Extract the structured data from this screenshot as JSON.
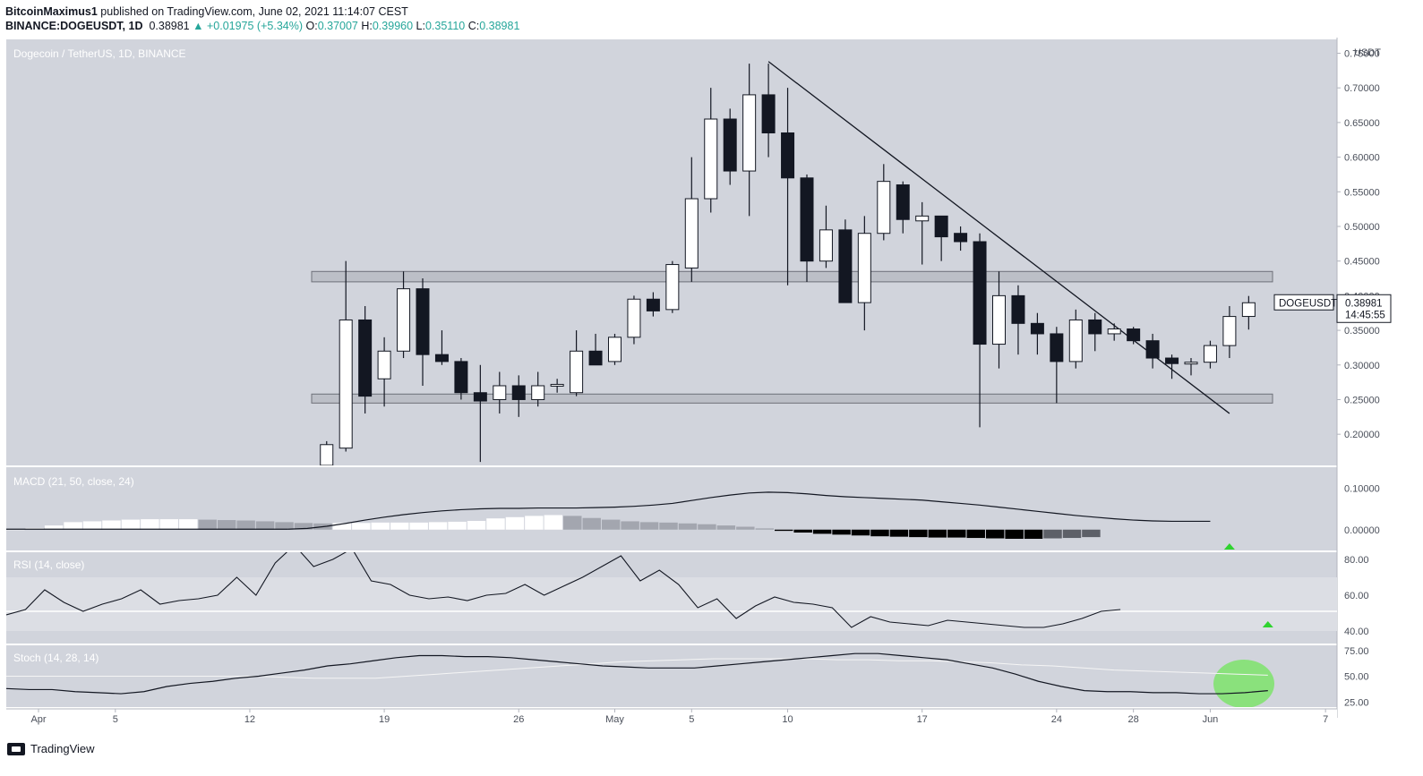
{
  "header": {
    "author": "BitcoinMaximus1",
    "published_text": "published on TradingView.com, June 02, 2021 11:14:07 CEST",
    "symbol": "BINANCE:DOGEUSDT, 1D",
    "last": "0.38981",
    "change": "▲ +0.01975 (+5.34%)",
    "o_label": "O:",
    "o": "0.37007",
    "h_label": "H:",
    "h": "0.39960",
    "l_label": "L:",
    "l": "0.35110",
    "c_label": "C:",
    "c": "0.38981"
  },
  "footer": {
    "brand": "TradingView"
  },
  "colors": {
    "panel_bg": "#d1d4dc",
    "bull": "#ffffff",
    "bear": "#131722",
    "highlight_green": "#7ee36b",
    "arrow_green": "#2fd32f"
  },
  "chart_data": [
    {
      "type": "candlestick",
      "title": "Dogecoin / TetherUS, 1D, BINANCE",
      "ylabel": "USDT",
      "ylim": [
        0.155,
        0.77
      ],
      "y_ticks": [
        "0.75000",
        "0.70000",
        "0.65000",
        "0.60000",
        "0.55000",
        "0.50000",
        "0.45000",
        "0.40000",
        "0.35000",
        "0.30000",
        "0.25000",
        "0.20000"
      ],
      "x_ticks": [
        {
          "label": "Apr",
          "day": 1
        },
        {
          "label": "5",
          "day": 5
        },
        {
          "label": "12",
          "day": 12
        },
        {
          "label": "19",
          "day": 19
        },
        {
          "label": "26",
          "day": 26
        },
        {
          "label": "May",
          "day": 31
        },
        {
          "label": "5",
          "day": 35
        },
        {
          "label": "10",
          "day": 40
        },
        {
          "label": "17",
          "day": 47
        },
        {
          "label": "24",
          "day": 54
        },
        {
          "label": "28",
          "day": 58
        },
        {
          "label": "Jun",
          "day": 62
        },
        {
          "label": "7",
          "day": 68
        }
      ],
      "candles": [
        {
          "d": 16,
          "o": 0.155,
          "h": 0.19,
          "l": 0.155,
          "c": 0.185
        },
        {
          "d": 17,
          "o": 0.18,
          "h": 0.45,
          "l": 0.175,
          "c": 0.365
        },
        {
          "d": 18,
          "o": 0.365,
          "h": 0.385,
          "l": 0.23,
          "c": 0.255
        },
        {
          "d": 19,
          "o": 0.28,
          "h": 0.34,
          "l": 0.24,
          "c": 0.32
        },
        {
          "d": 20,
          "o": 0.32,
          "h": 0.435,
          "l": 0.31,
          "c": 0.41
        },
        {
          "d": 21,
          "o": 0.41,
          "h": 0.425,
          "l": 0.27,
          "c": 0.315
        },
        {
          "d": 22,
          "o": 0.315,
          "h": 0.35,
          "l": 0.3,
          "c": 0.305
        },
        {
          "d": 23,
          "o": 0.305,
          "h": 0.31,
          "l": 0.25,
          "c": 0.26
        },
        {
          "d": 24,
          "o": 0.26,
          "h": 0.3,
          "l": 0.16,
          "c": 0.248
        },
        {
          "d": 25,
          "o": 0.25,
          "h": 0.29,
          "l": 0.23,
          "c": 0.27
        },
        {
          "d": 26,
          "o": 0.27,
          "h": 0.285,
          "l": 0.225,
          "c": 0.25
        },
        {
          "d": 27,
          "o": 0.25,
          "h": 0.29,
          "l": 0.24,
          "c": 0.27
        },
        {
          "d": 28,
          "o": 0.27,
          "h": 0.28,
          "l": 0.26,
          "c": 0.272
        },
        {
          "d": 29,
          "o": 0.26,
          "h": 0.35,
          "l": 0.255,
          "c": 0.32
        },
        {
          "d": 30,
          "o": 0.32,
          "h": 0.345,
          "l": 0.3,
          "c": 0.3
        },
        {
          "d": 31,
          "o": 0.305,
          "h": 0.345,
          "l": 0.3,
          "c": 0.34
        },
        {
          "d": 32,
          "o": 0.34,
          "h": 0.4,
          "l": 0.33,
          "c": 0.395
        },
        {
          "d": 33,
          "o": 0.395,
          "h": 0.405,
          "l": 0.37,
          "c": 0.378
        },
        {
          "d": 34,
          "o": 0.38,
          "h": 0.45,
          "l": 0.375,
          "c": 0.445
        },
        {
          "d": 35,
          "o": 0.44,
          "h": 0.6,
          "l": 0.42,
          "c": 0.54
        },
        {
          "d": 36,
          "o": 0.54,
          "h": 0.7,
          "l": 0.52,
          "c": 0.655
        },
        {
          "d": 37,
          "o": 0.655,
          "h": 0.67,
          "l": 0.56,
          "c": 0.58
        },
        {
          "d": 38,
          "o": 0.58,
          "h": 0.735,
          "l": 0.515,
          "c": 0.69
        },
        {
          "d": 39,
          "o": 0.69,
          "h": 0.735,
          "l": 0.6,
          "c": 0.635
        },
        {
          "d": 40,
          "o": 0.635,
          "h": 0.7,
          "l": 0.415,
          "c": 0.57
        },
        {
          "d": 41,
          "o": 0.57,
          "h": 0.575,
          "l": 0.42,
          "c": 0.45
        },
        {
          "d": 42,
          "o": 0.45,
          "h": 0.53,
          "l": 0.44,
          "c": 0.495
        },
        {
          "d": 43,
          "o": 0.495,
          "h": 0.51,
          "l": 0.39,
          "c": 0.39
        },
        {
          "d": 44,
          "o": 0.39,
          "h": 0.515,
          "l": 0.35,
          "c": 0.49
        },
        {
          "d": 45,
          "o": 0.49,
          "h": 0.59,
          "l": 0.48,
          "c": 0.565
        },
        {
          "d": 46,
          "o": 0.56,
          "h": 0.565,
          "l": 0.49,
          "c": 0.51
        },
        {
          "d": 47,
          "o": 0.508,
          "h": 0.535,
          "l": 0.445,
          "c": 0.515
        },
        {
          "d": 48,
          "o": 0.515,
          "h": 0.51,
          "l": 0.45,
          "c": 0.485
        },
        {
          "d": 49,
          "o": 0.49,
          "h": 0.5,
          "l": 0.465,
          "c": 0.478
        },
        {
          "d": 50,
          "o": 0.478,
          "h": 0.49,
          "l": 0.21,
          "c": 0.33
        },
        {
          "d": 51,
          "o": 0.33,
          "h": 0.435,
          "l": 0.295,
          "c": 0.4
        },
        {
          "d": 52,
          "o": 0.4,
          "h": 0.415,
          "l": 0.315,
          "c": 0.36
        },
        {
          "d": 53,
          "o": 0.36,
          "h": 0.375,
          "l": 0.315,
          "c": 0.345
        },
        {
          "d": 54,
          "o": 0.345,
          "h": 0.355,
          "l": 0.245,
          "c": 0.305
        },
        {
          "d": 55,
          "o": 0.305,
          "h": 0.38,
          "l": 0.295,
          "c": 0.365
        },
        {
          "d": 56,
          "o": 0.365,
          "h": 0.375,
          "l": 0.32,
          "c": 0.345
        },
        {
          "d": 57,
          "o": 0.345,
          "h": 0.36,
          "l": 0.335,
          "c": 0.352
        },
        {
          "d": 58,
          "o": 0.352,
          "h": 0.355,
          "l": 0.33,
          "c": 0.335
        },
        {
          "d": 59,
          "o": 0.335,
          "h": 0.345,
          "l": 0.295,
          "c": 0.31
        },
        {
          "d": 60,
          "o": 0.31,
          "h": 0.315,
          "l": 0.28,
          "c": 0.302
        },
        {
          "d": 61,
          "o": 0.302,
          "h": 0.31,
          "l": 0.285,
          "c": 0.304
        },
        {
          "d": 62,
          "o": 0.304,
          "h": 0.335,
          "l": 0.295,
          "c": 0.328
        },
        {
          "d": 63,
          "o": 0.328,
          "h": 0.385,
          "l": 0.31,
          "c": 0.37
        },
        {
          "d": 64,
          "o": 0.37007,
          "h": 0.3996,
          "l": 0.3511,
          "c": 0.38981
        }
      ],
      "zones": [
        {
          "low": 0.42,
          "high": 0.435
        },
        {
          "low": 0.245,
          "high": 0.258
        }
      ],
      "trendline": {
        "from": {
          "d": 39,
          "v": 0.738
        },
        "to": {
          "d": 63,
          "v": 0.23
        }
      },
      "price_label": {
        "symbol": "DOGEUSDT",
        "value": "0.38981",
        "countdown": "14:45:55"
      }
    },
    {
      "type": "macd",
      "title": "MACD (21, 50, close, 24)",
      "y_ticks": [
        "0.10000",
        "0.00000"
      ],
      "ylim": [
        -0.05,
        0.15
      ],
      "macd": [
        0.001,
        0.003,
        0.008,
        0.015,
        0.023,
        0.03,
        0.036,
        0.041,
        0.045,
        0.048,
        0.05,
        0.051,
        0.051,
        0.052,
        0.052,
        0.052,
        0.053,
        0.054,
        0.056,
        0.059,
        0.063,
        0.07,
        0.077,
        0.083,
        0.088,
        0.09,
        0.089,
        0.086,
        0.082,
        0.079,
        0.077,
        0.075,
        0.073,
        0.071,
        0.067,
        0.063,
        0.059,
        0.054,
        0.049,
        0.044,
        0.039,
        0.034,
        0.03,
        0.026,
        0.023,
        0.021,
        0.02,
        0.02,
        0.02
      ],
      "histogram": [
        0.001,
        0.004,
        0.01,
        0.018,
        0.02,
        0.022,
        0.024,
        0.025,
        0.025,
        0.025,
        0.024,
        0.023,
        0.022,
        0.02,
        0.018,
        0.016,
        0.015,
        0.016,
        0.016,
        0.017,
        0.017,
        0.017,
        0.018,
        0.019,
        0.021,
        0.027,
        0.03,
        0.033,
        0.035,
        0.033,
        0.028,
        0.024,
        0.02,
        0.018,
        0.017,
        0.015,
        0.013,
        0.01,
        0.007,
        0.003,
        -0.003,
        -0.007,
        -0.01,
        -0.012,
        -0.014,
        -0.016,
        -0.017,
        -0.018,
        -0.019,
        -0.019,
        -0.02,
        -0.021,
        -0.022,
        -0.022,
        -0.021,
        -0.02,
        -0.018
      ],
      "signal_marker_day": 63
    },
    {
      "type": "line",
      "title": "RSI (14, close)",
      "y_ticks": [
        "80.00",
        "60.00",
        "40.00"
      ],
      "ylim": [
        33,
        84
      ],
      "band": [
        40,
        70
      ],
      "level": 51,
      "values": [
        49,
        52,
        63,
        56,
        51,
        55,
        58,
        63,
        55,
        57,
        58,
        60,
        70,
        60,
        78,
        88,
        76,
        80,
        86,
        68,
        66,
        60,
        58,
        59,
        57,
        60,
        61,
        66,
        60,
        65,
        70,
        76,
        82,
        68,
        74,
        66,
        53,
        58,
        47,
        54,
        59,
        56,
        55,
        53,
        42,
        48,
        45,
        44,
        43,
        46,
        45,
        44,
        43,
        42,
        42,
        44,
        47,
        51,
        52
      ],
      "start_day": 2,
      "signal_marker_day": 65
    },
    {
      "type": "line",
      "title": "Stoch (14, 28, 14)",
      "y_ticks": [
        "75.00",
        "50.00",
        "25.00"
      ],
      "ylim": [
        20,
        80
      ],
      "k": [
        38,
        37,
        37,
        35,
        34,
        33,
        35,
        40,
        43,
        45,
        48,
        50,
        53,
        56,
        60,
        62,
        65,
        68,
        70,
        70,
        69,
        69,
        68,
        66,
        64,
        62,
        60,
        59,
        58,
        58,
        58,
        60,
        62,
        64,
        66,
        68,
        70,
        72,
        72,
        70,
        68,
        66,
        62,
        58,
        52,
        45,
        40,
        36,
        35,
        35,
        34,
        34,
        33,
        33,
        34,
        36
      ],
      "d": [
        50,
        50,
        50,
        50,
        50,
        50,
        50,
        50,
        50,
        49,
        48,
        48,
        48,
        50,
        52,
        54,
        56,
        58,
        60,
        62,
        64,
        65,
        66,
        67,
        67,
        67,
        67,
        66,
        66,
        65,
        65,
        64,
        63,
        61,
        60,
        58,
        56,
        55,
        54,
        53,
        52,
        51
      ],
      "start_day": 2
    }
  ]
}
